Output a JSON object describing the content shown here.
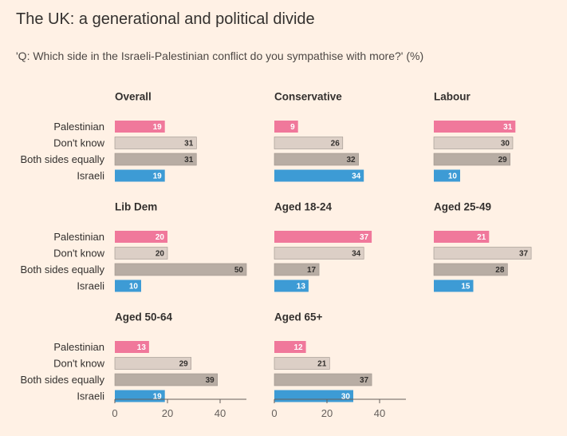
{
  "header": {
    "title": "The UK: a generational and political divide",
    "subtitle": "'Q: Which side in the Israeli-Palestinian conflict do you sympathise with more?' (%)"
  },
  "colors": {
    "background": "#fff1e5",
    "Palestinian": "#f0789b",
    "Don't know": "#dccfc6",
    "Both sides equally": "#b8ada4",
    "Israeli": "#3d9bd5",
    "label_light": "#ffffff",
    "label_dark": "#33302e",
    "axis": "#66605c"
  },
  "chart_data": {
    "type": "bar",
    "orientation": "horizontal",
    "title": "The UK: a generational and political divide",
    "subtitle": "'Q: Which side in the Israeli-Palestinian conflict do you sympathise with more?' (%)",
    "categories": [
      "Palestinian",
      "Don't know",
      "Both sides equally",
      "Israeli"
    ],
    "xlim": [
      0,
      50
    ],
    "xticks": [
      0,
      20,
      40
    ],
    "panels": [
      {
        "name": "Overall",
        "values": [
          19,
          31,
          31,
          19
        ]
      },
      {
        "name": "Conservative",
        "values": [
          9,
          26,
          32,
          34
        ]
      },
      {
        "name": "Labour",
        "values": [
          31,
          30,
          29,
          10
        ]
      },
      {
        "name": "Lib Dem",
        "values": [
          20,
          20,
          50,
          10
        ]
      },
      {
        "name": "Aged 18-24",
        "values": [
          37,
          34,
          17,
          13
        ]
      },
      {
        "name": "Aged 25-49",
        "values": [
          21,
          37,
          28,
          15
        ]
      },
      {
        "name": "Aged 50-64",
        "values": [
          13,
          29,
          39,
          19
        ]
      },
      {
        "name": "Aged 65+",
        "values": [
          12,
          21,
          37,
          30
        ]
      }
    ]
  }
}
